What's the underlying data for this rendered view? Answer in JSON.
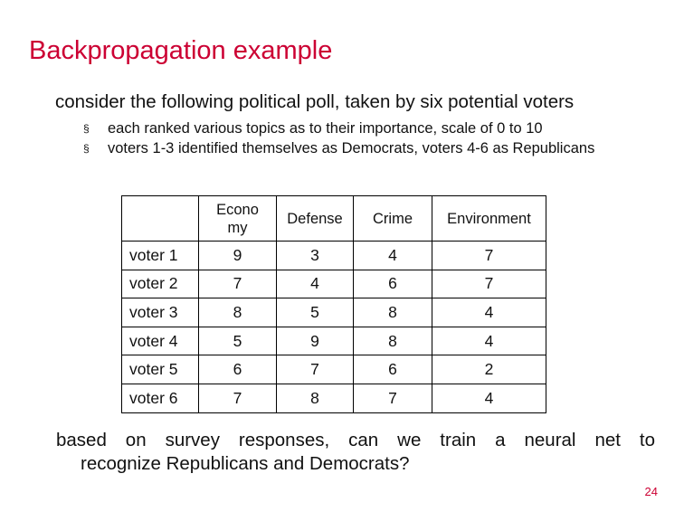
{
  "slide": {
    "title": "Backpropagation example",
    "intro": "consider the following political poll, taken by six potential voters",
    "bullets": [
      "each ranked various topics as to their importance, scale of 0 to 10",
      "voters 1-3 identified themselves as Democrats, voters 4-6 as Republicans"
    ],
    "bullet_marker": "§",
    "table": {
      "headers": [
        "",
        "Econo my",
        "Defense",
        "Crime",
        "Environment"
      ],
      "rows": [
        {
          "label": "voter 1",
          "values": [
            "9",
            "3",
            "4",
            "7"
          ]
        },
        {
          "label": "voter 2",
          "values": [
            "7",
            "4",
            "6",
            "7"
          ]
        },
        {
          "label": "voter 3",
          "values": [
            "8",
            "5",
            "8",
            "4"
          ]
        },
        {
          "label": "voter 4",
          "values": [
            "5",
            "9",
            "8",
            "4"
          ]
        },
        {
          "label": "voter 5",
          "values": [
            "6",
            "7",
            "6",
            "2"
          ]
        },
        {
          "label": "voter 6",
          "values": [
            "7",
            "8",
            "7",
            "4"
          ]
        }
      ]
    },
    "outro_line1": "based on survey responses, can we train a neural net to",
    "outro_line2": "recognize Republicans and Democrats?",
    "page_number": "24",
    "accent_color": "#cc0033"
  }
}
